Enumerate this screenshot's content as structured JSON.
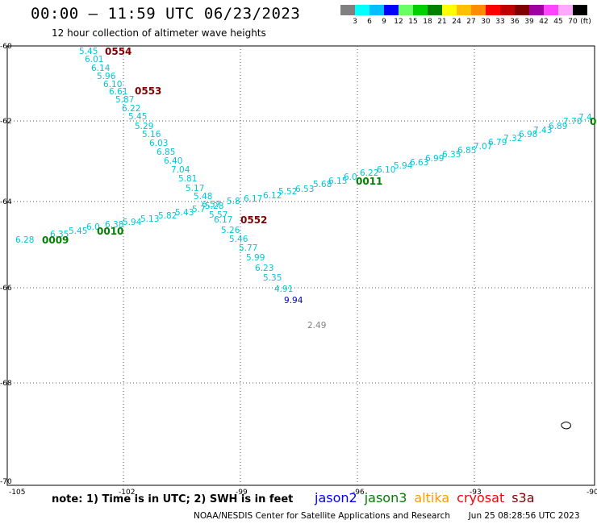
{
  "header": {
    "title": "00:00 – 11:59 UTC 06/23/2023",
    "subtitle": "12 hour collection of altimeter wave heights"
  },
  "legend": {
    "swatches": [
      "#808080",
      "#00ffff",
      "#00bfff",
      "#0000ff",
      "#66ff66",
      "#00d000",
      "#008000",
      "#ffff00",
      "#ffc000",
      "#ff8c00",
      "#ff0000",
      "#c00000",
      "#800000",
      "#a000a0",
      "#ff44ff",
      "#ffaaff",
      "#000000"
    ],
    "labels": [
      "3",
      "6",
      "9",
      "12",
      "15",
      "18",
      "21",
      "24",
      "27",
      "30",
      "33",
      "36",
      "39",
      "42",
      "45",
      "70",
      "(ft)"
    ]
  },
  "axes": {
    "x_ticks": [
      "-105",
      "-102",
      "-99",
      "-96",
      "-93",
      "-90"
    ],
    "y_ticks": [
      "-60",
      "-62",
      "-64",
      "-66",
      "-68",
      "-70"
    ]
  },
  "pass_labels": [
    {
      "text": "0554",
      "color": "#800000"
    },
    {
      "text": "0553",
      "color": "#800000"
    },
    {
      "text": "0552",
      "color": "#800000"
    },
    {
      "text": "0011",
      "color": "#008000"
    },
    {
      "text": "0010",
      "color": "#008000"
    },
    {
      "text": "0009",
      "color": "#008000"
    },
    {
      "text": "0",
      "color": "#008000"
    }
  ],
  "track_points": [
    {
      "v": "5.45",
      "c": "#00c8d8"
    },
    {
      "v": "6.01",
      "c": "#00c8d8"
    },
    {
      "v": "6.14",
      "c": "#00c8d8"
    },
    {
      "v": "5.96",
      "c": "#00c8d8"
    },
    {
      "v": "6.10",
      "c": "#00c8d8"
    },
    {
      "v": "6.61",
      "c": "#00c8d8"
    },
    {
      "v": "5.87",
      "c": "#00c8d8"
    },
    {
      "v": "6.22",
      "c": "#00c8d8"
    },
    {
      "v": "5.45",
      "c": "#00c8d8"
    },
    {
      "v": "5.29",
      "c": "#00c8d8"
    },
    {
      "v": "5.16",
      "c": "#00c8d8"
    },
    {
      "v": "6.03",
      "c": "#00c8d8"
    },
    {
      "v": "6.85",
      "c": "#00c8d8"
    },
    {
      "v": "6.40",
      "c": "#00c8d8"
    },
    {
      "v": "7.04",
      "c": "#00c8d8"
    },
    {
      "v": "5.81",
      "c": "#00c8d8"
    },
    {
      "v": "5.17",
      "c": "#00c8d8"
    },
    {
      "v": "5.48",
      "c": "#00c8d8"
    },
    {
      "v": "6.57",
      "c": "#00c8d8"
    },
    {
      "v": "5.57",
      "c": "#00c8d8"
    },
    {
      "v": "6.17",
      "c": "#00c8d8"
    },
    {
      "v": "5.26",
      "c": "#00c8d8"
    },
    {
      "v": "5.46",
      "c": "#00c8d8"
    },
    {
      "v": "5.77",
      "c": "#00c8d8"
    },
    {
      "v": "5.99",
      "c": "#00c8d8"
    },
    {
      "v": "6.23",
      "c": "#00c8d8"
    },
    {
      "v": "5.35",
      "c": "#00c8d8"
    },
    {
      "v": "4.91",
      "c": "#00c8d8"
    },
    {
      "v": "9.94",
      "c": "#0000c0"
    },
    {
      "v": "2.49",
      "c": "#808080"
    },
    {
      "v": "6.28",
      "c": "#00c8d8"
    },
    {
      "v": "6.35",
      "c": "#00c8d8"
    },
    {
      "v": "5.45",
      "c": "#00c8d8"
    },
    {
      "v": "6.0",
      "c": "#00c8d8"
    },
    {
      "v": "6.38",
      "c": "#00c8d8"
    },
    {
      "v": "5.94",
      "c": "#00c8d8"
    },
    {
      "v": "5.13",
      "c": "#00c8d8"
    },
    {
      "v": "5.82",
      "c": "#00c8d8"
    },
    {
      "v": "5.43",
      "c": "#00c8d8"
    },
    {
      "v": "5.7",
      "c": "#00c8d8"
    },
    {
      "v": "5.28",
      "c": "#00c8d8"
    },
    {
      "v": "5.8",
      "c": "#00c8d8"
    },
    {
      "v": "6.17",
      "c": "#00c8d8"
    },
    {
      "v": "6.12",
      "c": "#00c8d8"
    },
    {
      "v": "5.52",
      "c": "#00c8d8"
    },
    {
      "v": "6.53",
      "c": "#00c8d8"
    },
    {
      "v": "5.68",
      "c": "#00c8d8"
    },
    {
      "v": "6.15",
      "c": "#00c8d8"
    },
    {
      "v": "6.0",
      "c": "#00c8d8"
    },
    {
      "v": "6.22",
      "c": "#00c8d8"
    },
    {
      "v": "6.10",
      "c": "#00c8d8"
    },
    {
      "v": "5.94",
      "c": "#00c8d8"
    },
    {
      "v": "6.63",
      "c": "#00c8d8"
    },
    {
      "v": "6.99",
      "c": "#00c8d8"
    },
    {
      "v": "6.35",
      "c": "#00c8d8"
    },
    {
      "v": "6.85",
      "c": "#00c8d8"
    },
    {
      "v": "7.07",
      "c": "#00c8d8"
    },
    {
      "v": "6.79",
      "c": "#00c8d8"
    },
    {
      "v": "7.32",
      "c": "#00c8d8"
    },
    {
      "v": "6.98",
      "c": "#00c8d8"
    },
    {
      "v": "7.43",
      "c": "#00c8d8"
    },
    {
      "v": "6.89",
      "c": "#00c8d8"
    },
    {
      "v": "7.70",
      "c": "#00c8d8"
    },
    {
      "v": "7.4",
      "c": "#00c8d8"
    }
  ],
  "notes": {
    "note": "note:  1) Time is in UTC;  2) SWH is in feet"
  },
  "satellites": [
    {
      "name": "jason2",
      "color": "#0000ff"
    },
    {
      "name": "jason3",
      "color": "#008000"
    },
    {
      "name": "altika",
      "color": "#ff9900"
    },
    {
      "name": "cryosat",
      "color": "#ff0000"
    },
    {
      "name": "s3a",
      "color": "#800000"
    }
  ],
  "footer": {
    "credit": "NOAA/NESDIS Center for Satellite Applications and Research",
    "timestamp": "Jun 25 08:28:56 UTC 2023"
  }
}
